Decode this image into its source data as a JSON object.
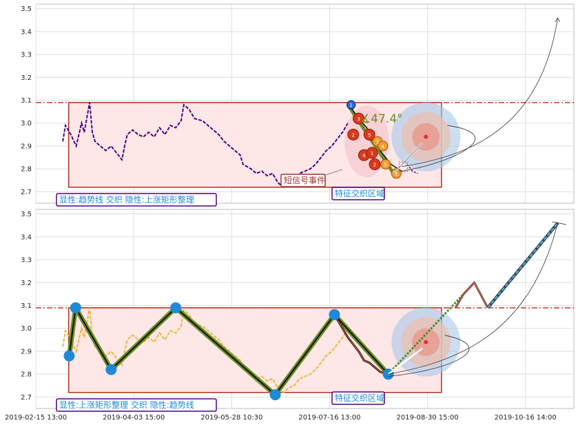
{
  "chart_data": [
    {
      "type": "line",
      "panel": "top",
      "ylim": [
        2.65,
        3.52
      ],
      "yticks": [
        "2.7",
        "2.8",
        "2.9",
        "3.0",
        "3.1",
        "3.2",
        "3.3",
        "3.4",
        "3.5"
      ],
      "grid": true,
      "x_domain": [
        0,
        100
      ],
      "price_series": {
        "color": "#4b0082",
        "style": "dashed",
        "points": [
          [
            5,
            2.92
          ],
          [
            5.5,
            2.99
          ],
          [
            6.5,
            2.95
          ],
          [
            7.5,
            2.9
          ],
          [
            8.5,
            3.0
          ],
          [
            9,
            2.96
          ],
          [
            10,
            3.09
          ],
          [
            10.5,
            2.96
          ],
          [
            11,
            2.92
          ],
          [
            12,
            2.9
          ],
          [
            13,
            2.88
          ],
          [
            14,
            2.9
          ],
          [
            15,
            2.87
          ],
          [
            16,
            2.84
          ],
          [
            16.5,
            2.9
          ],
          [
            17,
            2.95
          ],
          [
            18,
            2.97
          ],
          [
            19,
            2.95
          ],
          [
            20,
            2.94
          ],
          [
            21,
            2.96
          ],
          [
            22,
            2.94
          ],
          [
            23,
            2.98
          ],
          [
            24,
            2.95
          ],
          [
            25,
            2.99
          ],
          [
            26,
            2.98
          ],
          [
            27,
            3.01
          ],
          [
            27.5,
            3.08
          ],
          [
            28.5,
            3.06
          ],
          [
            29.5,
            3.02
          ],
          [
            31,
            3.01
          ],
          [
            32,
            2.99
          ],
          [
            33,
            2.97
          ],
          [
            34,
            2.95
          ],
          [
            35,
            2.92
          ],
          [
            36,
            2.9
          ],
          [
            37,
            2.88
          ],
          [
            38,
            2.86
          ],
          [
            38.5,
            2.82
          ],
          [
            40,
            2.8
          ],
          [
            41,
            2.78
          ],
          [
            42,
            2.79
          ],
          [
            43,
            2.77
          ],
          [
            44,
            2.78
          ],
          [
            45,
            2.74
          ],
          [
            46,
            2.72
          ],
          [
            47,
            2.74
          ],
          [
            48,
            2.75
          ],
          [
            49,
            2.78
          ],
          [
            50,
            2.79
          ],
          [
            51,
            2.8
          ],
          [
            52,
            2.82
          ],
          [
            53,
            2.85
          ],
          [
            54,
            2.88
          ],
          [
            55,
            2.9
          ],
          [
            56,
            2.93
          ],
          [
            57,
            2.96
          ],
          [
            58,
            3.0
          ]
        ],
        "aux_points": [
          [
            69,
            2.82
          ],
          [
            70,
            2.79
          ],
          [
            71,
            2.78
          ]
        ]
      },
      "band": {
        "y_low": 2.72,
        "y_high": 3.09,
        "x_start": 6.1,
        "x_end": 75.4
      },
      "resistance_line": 3.09,
      "signal_path": [
        [
          58.5,
          3.07
        ],
        [
          60,
          3.02
        ],
        [
          61.5,
          2.98
        ],
        [
          63,
          2.93
        ],
        [
          64,
          2.88
        ],
        [
          66,
          2.82
        ],
        [
          68,
          2.79
        ]
      ],
      "trend_segment": {
        "x0": 58,
        "y0": 3.08,
        "x1": 66.5,
        "y1": 2.78
      },
      "marker_blue": {
        "x": 58.6,
        "y": 3.08,
        "label": "1"
      },
      "markers_red": [
        [
          59,
          2.95
        ],
        [
          60,
          3.02
        ],
        [
          61,
          2.86
        ],
        [
          62,
          2.95
        ],
        [
          62.5,
          2.87
        ],
        [
          63,
          2.82
        ]
      ],
      "markers_orange": [
        [
          63.5,
          2.92
        ],
        [
          64.5,
          2.9
        ],
        [
          65,
          2.82
        ],
        [
          67,
          2.78
        ]
      ],
      "marker_labels": [
        "1",
        "2",
        "3",
        "4",
        "5"
      ],
      "angle_label": "∡47.4°",
      "target_point": {
        "x": 72.5,
        "y": 2.94
      },
      "projection_arrow_end": {
        "x": 97,
        "y": 3.46
      },
      "annotation_signal": "短信号事件",
      "annotation_zone": "特征交织区域",
      "pattern_label": "显性:趋势线 交织 隐性:上涨矩形整理"
    },
    {
      "type": "line",
      "panel": "bottom",
      "ylim": [
        2.65,
        3.52
      ],
      "yticks": [
        "2.7",
        "2.8",
        "2.9",
        "3.0",
        "3.1",
        "3.2",
        "3.3",
        "3.4",
        "3.5"
      ],
      "grid": true,
      "x_domain": [
        0,
        100
      ],
      "price_series": {
        "color": "#e8b83a",
        "points": [
          [
            5,
            2.92
          ],
          [
            5.5,
            2.99
          ],
          [
            6.5,
            2.95
          ],
          [
            7.5,
            2.9
          ],
          [
            8.5,
            3.0
          ],
          [
            9,
            2.96
          ],
          [
            10,
            3.09
          ],
          [
            10.5,
            2.96
          ],
          [
            11,
            2.92
          ],
          [
            12,
            2.9
          ],
          [
            13,
            2.88
          ],
          [
            14,
            2.9
          ],
          [
            15,
            2.87
          ],
          [
            16,
            2.84
          ],
          [
            16.5,
            2.9
          ],
          [
            17,
            2.95
          ],
          [
            18,
            2.97
          ],
          [
            19,
            2.95
          ],
          [
            20,
            2.94
          ],
          [
            21,
            2.96
          ],
          [
            22,
            2.94
          ],
          [
            23,
            2.98
          ],
          [
            24,
            2.95
          ],
          [
            25,
            2.99
          ],
          [
            26,
            2.98
          ],
          [
            27,
            3.01
          ],
          [
            27.5,
            3.08
          ],
          [
            28.5,
            3.06
          ],
          [
            29.5,
            3.02
          ],
          [
            31,
            3.01
          ],
          [
            32,
            2.99
          ],
          [
            33,
            2.97
          ],
          [
            34,
            2.95
          ],
          [
            35,
            2.92
          ],
          [
            36,
            2.9
          ],
          [
            37,
            2.88
          ],
          [
            38,
            2.86
          ],
          [
            38.5,
            2.82
          ],
          [
            40,
            2.8
          ],
          [
            41,
            2.78
          ],
          [
            42,
            2.79
          ],
          [
            43,
            2.77
          ],
          [
            44,
            2.78
          ],
          [
            45,
            2.74
          ],
          [
            46,
            2.72
          ],
          [
            47,
            2.74
          ],
          [
            48,
            2.75
          ],
          [
            49,
            2.78
          ],
          [
            50,
            2.79
          ],
          [
            51,
            2.8
          ],
          [
            52,
            2.82
          ],
          [
            53,
            2.85
          ],
          [
            54,
            2.88
          ],
          [
            55,
            2.9
          ],
          [
            56,
            2.93
          ],
          [
            57,
            2.96
          ],
          [
            58,
            3.0
          ]
        ]
      },
      "band": {
        "y_low": 2.72,
        "y_high": 3.09,
        "x_start": 6.1,
        "x_end": 75.4
      },
      "resistance_line": 3.09,
      "zigzag_pivots": [
        [
          6.2,
          2.88
        ],
        [
          7.4,
          3.09
        ],
        [
          14,
          2.82
        ],
        [
          26,
          3.09
        ],
        [
          44.5,
          2.71
        ],
        [
          55.5,
          3.06
        ],
        [
          65.5,
          2.8
        ]
      ],
      "red_zigzag": [
        [
          55.5,
          3.06
        ],
        [
          57,
          3.0
        ],
        [
          58,
          2.96
        ],
        [
          59,
          2.93
        ],
        [
          60,
          2.9
        ],
        [
          61,
          2.86
        ],
        [
          62,
          2.85
        ],
        [
          63,
          2.83
        ],
        [
          64,
          2.81
        ],
        [
          65.5,
          2.8
        ]
      ],
      "forecast_up": [
        [
          65.5,
          2.8
        ],
        [
          81.5,
          3.2
        ]
      ],
      "forecast_red": [
        [
          78,
          3.09
        ],
        [
          79.5,
          3.15
        ],
        [
          81.5,
          3.2
        ],
        [
          84,
          3.09
        ]
      ],
      "forecast_blue": [
        [
          84,
          3.09
        ],
        [
          97,
          3.46
        ]
      ],
      "target_point": {
        "x": 72.5,
        "y": 2.94
      },
      "annotation_zone": "特征交织区域",
      "pattern_label": "显性:上涨矩形整理 交织 隐性:趋势线"
    }
  ],
  "x_axis": {
    "ticks": [
      {
        "label": "2019-02-15 13:00",
        "x": 0
      },
      {
        "label": "2019-04-03 15:00",
        "x": 18.2
      },
      {
        "label": "2019-05-28 10:30",
        "x": 36.4
      },
      {
        "label": "2019-07-16 13:00",
        "x": 54.6
      },
      {
        "label": "2019-08-30 15:00",
        "x": 72.8
      },
      {
        "label": "2019-10-16 14:00",
        "x": 91
      }
    ]
  },
  "colors": {
    "band_fill": "#fde7e7",
    "band_stroke": "#b03020",
    "resistance": "#c0392b",
    "trend_green": "#6b8e23",
    "zigzag_blue": "#1e8ad6",
    "label_text": "#1e8ad6",
    "label_border": "#4b0082",
    "signal_text": "#a23030"
  }
}
